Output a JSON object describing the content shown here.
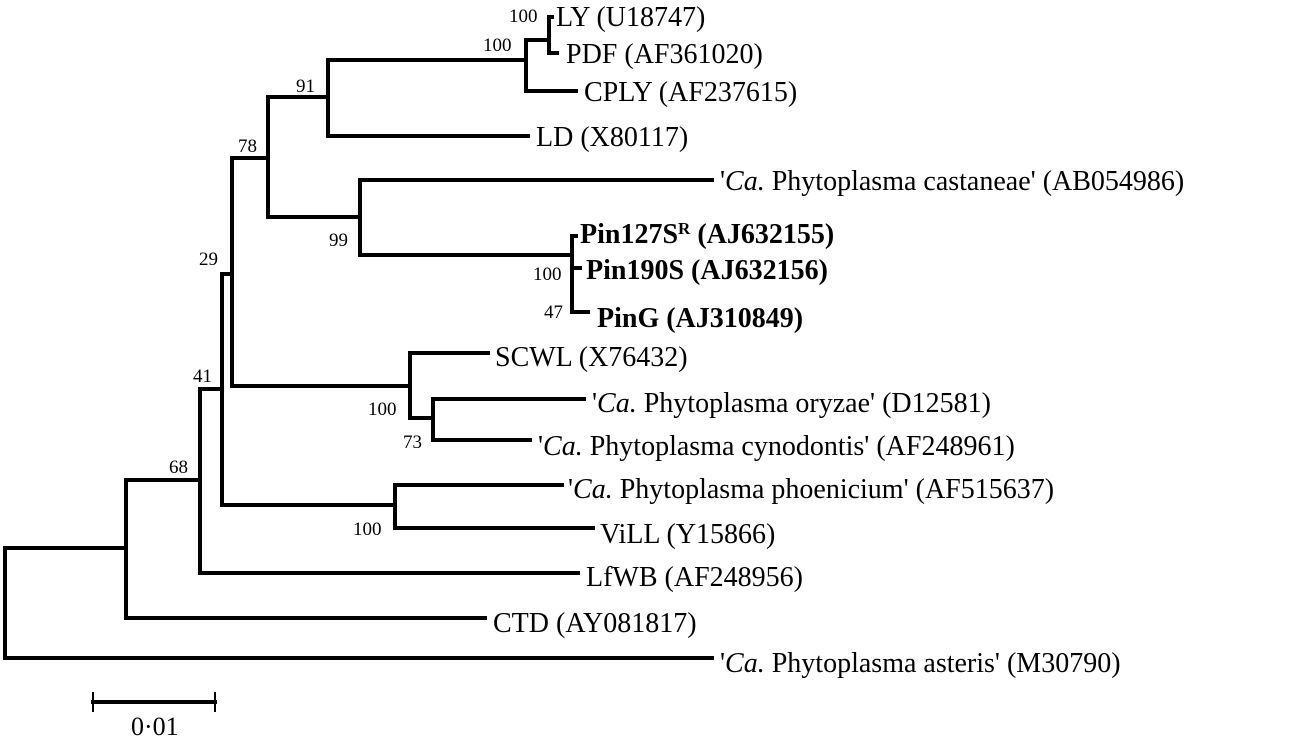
{
  "leaves": {
    "ly": {
      "name": "LY",
      "acc": "(U18747)"
    },
    "pdf": {
      "name": "PDF",
      "acc": "(AF361020)"
    },
    "cply": {
      "name": "CPLY",
      "acc": "(AF237615)"
    },
    "ld": {
      "name": "LD",
      "acc": "(X80117)"
    },
    "castaneae": {
      "pre": "'",
      "it": "Ca.",
      "name": " Phytoplasma castaneae'",
      "acc": "(AB054986)"
    },
    "pin127": {
      "name": "Pin127S",
      "sup": "R",
      "acc": "(AJ632155)"
    },
    "pin190": {
      "name": "Pin190S",
      "acc": "(AJ632156)"
    },
    "ping": {
      "name": "PinG",
      "acc": "(AJ310849)"
    },
    "scwl": {
      "name": "SCWL",
      "acc": "(X76432)"
    },
    "oryzae": {
      "pre": "'",
      "it": "Ca.",
      "name": " Phytoplasma oryzae'",
      "acc": "(D12581)"
    },
    "cynodontis": {
      "pre": "'",
      "it": "Ca.",
      "name": " Phytoplasma cynodontis'",
      "acc": "(AF248961)"
    },
    "phoenicium": {
      "pre": "'",
      "it": "Ca.",
      "name": " Phytoplasma phoenicium'",
      "acc": "(AF515637)"
    },
    "vill": {
      "name": "ViLL",
      "acc": "(Y15866)"
    },
    "lfwb": {
      "name": "LfWB",
      "acc": "(AF248956)"
    },
    "ctd": {
      "name": "CTD",
      "acc": "(AY081817)"
    },
    "asteris": {
      "pre": "'",
      "it": "Ca.",
      "name": " Phytoplasma asteris'",
      "acc": "(M30790)"
    }
  },
  "bootstrap": {
    "ly_pdf": "100",
    "ly_pdf_cply": "100",
    "ly_ld": "91",
    "clade_78": "78",
    "castaneae_pin": "99",
    "pin_100": "100",
    "pin_47": "47",
    "node_29": "29",
    "scwl": "100",
    "oryzae_cynodontis": "73",
    "node_41": "41",
    "phoenicium_vill": "100",
    "node_68": "68"
  },
  "scale": {
    "label": "0·01"
  }
}
